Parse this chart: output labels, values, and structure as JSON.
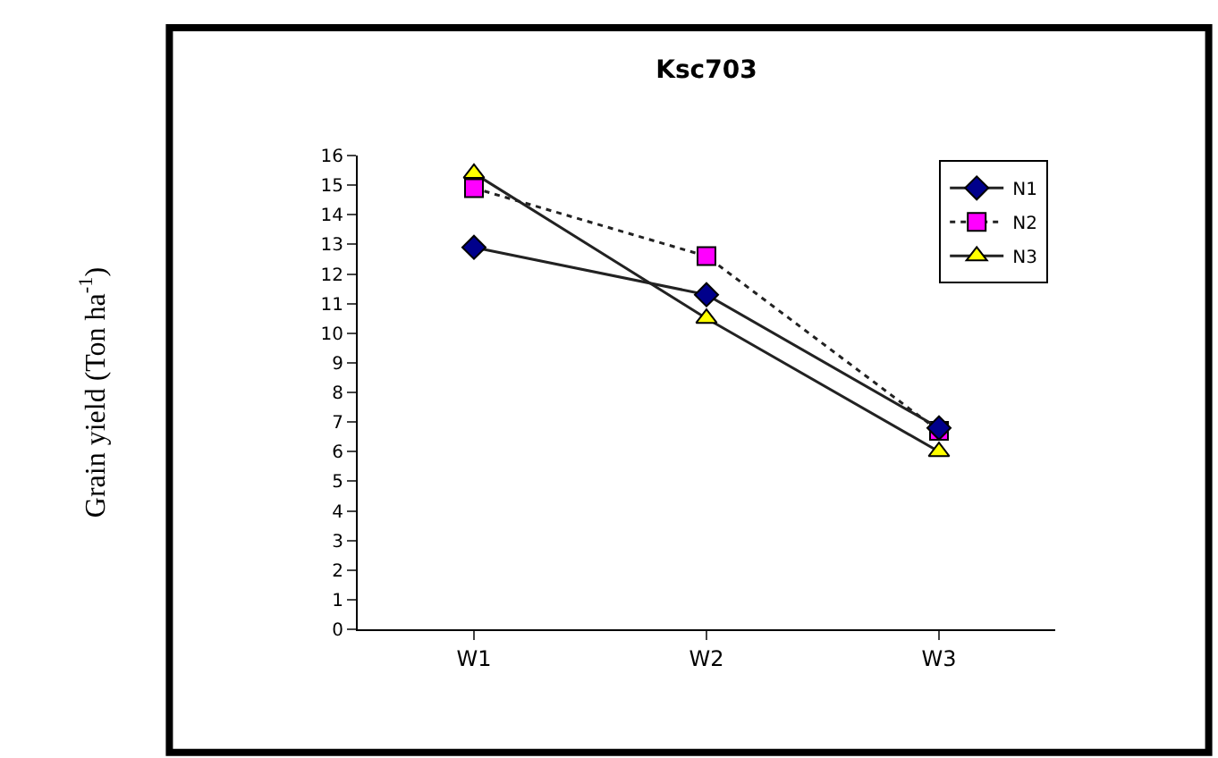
{
  "chart_data": {
    "type": "line",
    "title": "Ksc703",
    "annotations": [
      "Grain yield (Ton ha$^{-1}$)"
    ],
    "categories": [
      "W1",
      "W2",
      "W3"
    ],
    "series": [
      {
        "name": "N1",
        "color": "#00008b",
        "marker": "diamond",
        "line_style": "solid",
        "values": [
          12.9,
          11.3,
          6.8
        ]
      },
      {
        "name": "N2",
        "color": "#ff00ff",
        "marker": "square",
        "line_style": "dotted",
        "values": [
          14.9,
          12.6,
          6.7
        ]
      },
      {
        "name": "N3",
        "color": "#ffff00",
        "marker": "triangle",
        "line_style": "solid",
        "values": [
          15.4,
          10.5,
          6.0
        ]
      }
    ],
    "ylim": [
      0,
      16
    ],
    "yticks": [
      0,
      1,
      2,
      3,
      4,
      5,
      6,
      7,
      8,
      9,
      10,
      11,
      12,
      13,
      14,
      15,
      16
    ],
    "legend": "top right"
  }
}
